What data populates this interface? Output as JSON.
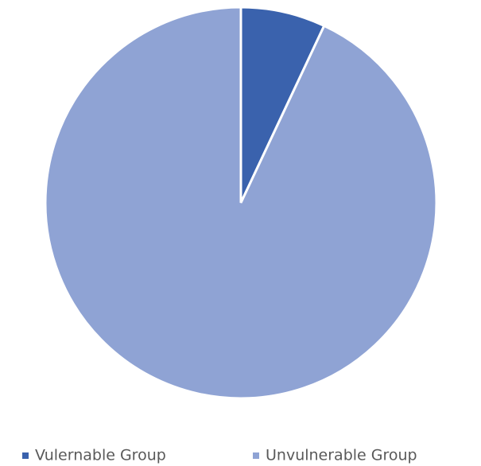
{
  "chart_data": {
    "type": "pie",
    "categories": [
      "Vulernable Group",
      "Unvulnerable Group"
    ],
    "values": [
      7,
      93
    ],
    "colors": [
      "#3a62ad",
      "#8fa3d4"
    ],
    "legend": "bottom"
  }
}
